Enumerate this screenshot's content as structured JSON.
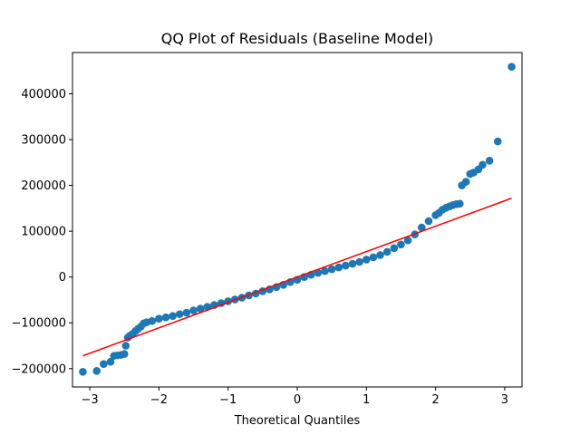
{
  "chart_data": {
    "type": "scatter",
    "title": "QQ Plot of Residuals (Baseline Model)",
    "xlabel": "Theoretical Quantiles",
    "ylabel": "",
    "xlim": [
      -3.25,
      3.25
    ],
    "ylim": [
      -240000,
      490000
    ],
    "x_ticks": [
      -3,
      -2,
      -1,
      0,
      1,
      2,
      3
    ],
    "x_tick_labels": [
      "−3",
      "−2",
      "−1",
      "0",
      "1",
      "2",
      "3"
    ],
    "y_ticks": [
      -200000,
      -100000,
      0,
      100000,
      200000,
      300000,
      400000
    ],
    "y_tick_labels": [
      "−200000",
      "−100000",
      "0",
      "100000",
      "200000",
      "300000",
      "400000"
    ],
    "grid": false,
    "legend": "none",
    "series": [
      {
        "kind": "points",
        "color": "#1f77b4",
        "points": [
          [
            -3.1,
            -207000
          ],
          [
            -2.9,
            -205000
          ],
          [
            -2.8,
            -190000
          ],
          [
            -2.7,
            -185000
          ],
          [
            -2.65,
            -172000
          ],
          [
            -2.6,
            -171000
          ],
          [
            -2.55,
            -170000
          ],
          [
            -2.5,
            -168000
          ],
          [
            -2.48,
            -150000
          ],
          [
            -2.45,
            -132000
          ],
          [
            -2.42,
            -128000
          ],
          [
            -2.38,
            -124000
          ],
          [
            -2.34,
            -118000
          ],
          [
            -2.3,
            -113000
          ],
          [
            -2.26,
            -108000
          ],
          [
            -2.22,
            -101000
          ],
          [
            -2.18,
            -99000
          ],
          [
            -2.1,
            -96000
          ],
          [
            -2.0,
            -91000
          ],
          [
            -1.9,
            -88000
          ],
          [
            -1.8,
            -85000
          ],
          [
            -1.7,
            -81000
          ],
          [
            -1.6,
            -78000
          ],
          [
            -1.5,
            -73000
          ],
          [
            -1.4,
            -69000
          ],
          [
            -1.3,
            -65000
          ],
          [
            -1.2,
            -61000
          ],
          [
            -1.1,
            -57000
          ],
          [
            -1.0,
            -53000
          ],
          [
            -0.9,
            -49000
          ],
          [
            -0.8,
            -45000
          ],
          [
            -0.7,
            -40000
          ],
          [
            -0.6,
            -36000
          ],
          [
            -0.5,
            -31000
          ],
          [
            -0.4,
            -27000
          ],
          [
            -0.3,
            -22000
          ],
          [
            -0.2,
            -17000
          ],
          [
            -0.1,
            -11000
          ],
          [
            0.0,
            -6000
          ],
          [
            0.1,
            0
          ],
          [
            0.2,
            5000
          ],
          [
            0.3,
            9000
          ],
          [
            0.4,
            13000
          ],
          [
            0.5,
            17000
          ],
          [
            0.6,
            21000
          ],
          [
            0.7,
            25000
          ],
          [
            0.8,
            29000
          ],
          [
            0.9,
            33000
          ],
          [
            1.0,
            38000
          ],
          [
            1.1,
            43000
          ],
          [
            1.2,
            48000
          ],
          [
            1.3,
            55000
          ],
          [
            1.4,
            63000
          ],
          [
            1.5,
            71000
          ],
          [
            1.6,
            80000
          ],
          [
            1.7,
            93000
          ],
          [
            1.8,
            108000
          ],
          [
            1.9,
            122000
          ],
          [
            2.0,
            135000
          ],
          [
            2.05,
            140000
          ],
          [
            2.1,
            147000
          ],
          [
            2.15,
            151000
          ],
          [
            2.2,
            154000
          ],
          [
            2.25,
            157000
          ],
          [
            2.3,
            159000
          ],
          [
            2.35,
            160000
          ],
          [
            2.38,
            200000
          ],
          [
            2.44,
            208000
          ],
          [
            2.5,
            225000
          ],
          [
            2.55,
            228000
          ],
          [
            2.62,
            235000
          ],
          [
            2.68,
            245000
          ],
          [
            2.78,
            254000
          ],
          [
            2.9,
            296000
          ],
          [
            3.1,
            459000
          ]
        ]
      },
      {
        "kind": "reference-line",
        "color": "#ff0000",
        "x": [
          -3.1,
          3.1
        ],
        "y": [
          -172000,
          172000
        ]
      }
    ]
  }
}
